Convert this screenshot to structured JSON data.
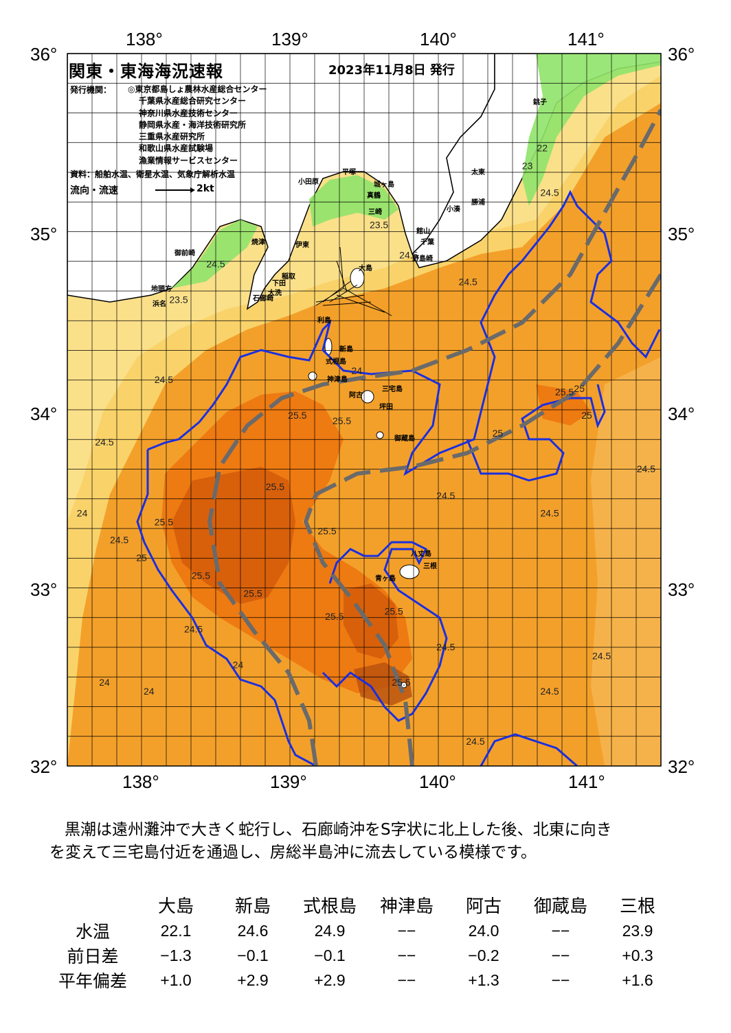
{
  "map": {
    "title": "関東・東海海況速報",
    "issued": "2023年11月8日 発行",
    "institutions_label": "発行機関：",
    "institutions": [
      "◎東京都島しょ農林水産総合センター",
      "千葉県水産総合研究センター",
      "神奈川県水産技術センター",
      "静岡県水産・海洋技術研究所",
      "三重県水産研究所",
      "和歌山県水産試験場",
      "漁業情報サービスセンター"
    ],
    "source": "資料：船舶水温、衛星水温、気象庁解析水温",
    "flow_label": "流向・流速",
    "flow_scale": "2kt",
    "lon_labels": [
      "138°",
      "139°",
      "140°",
      "141°"
    ],
    "lat_labels": [
      "36°",
      "35°",
      "34°",
      "33°",
      "32°"
    ],
    "colors": {
      "sea_base": "#f3a02b",
      "warm": "#ee7a12",
      "hot": "#d8600b",
      "cool": "#f9d36a",
      "land": "#ffffff",
      "kuroshio_path": "#6a6a6a",
      "contour_25": "#1a2fe0"
    },
    "places": {
      "oshima": "大島",
      "toshima": "利島",
      "niijima": "新島",
      "shikinejima": "式根島",
      "kozushima": "神津島",
      "miyakejima": "三宅島",
      "ako": "阿古",
      "tsubota": "坪田",
      "mikurajima": "御蔵島",
      "hachijojima": "八丈島",
      "mine": "三根",
      "aogashima": "青ヶ島",
      "choshi": "銚子",
      "taito": "太東",
      "katsuura": "勝浦",
      "kominato": "小湊",
      "tateyama": "館山",
      "nojimazaki": "野島崎",
      "odawara": "小田原",
      "manazuru": "真鶴",
      "hiratsuka": "平塚",
      "ito": "伊東",
      "inatori": "稲取",
      "shimoda": "下田",
      "omaezaki": "御前崎",
      "iroezaki": "石廊崎",
      "chiba": "千葉",
      "daito": "大洗",
      "misaki": "三崎",
      "jogashima": "城ヶ島",
      "yaizu": "焼津",
      "hamana": "浜名",
      "chikyumon": "地頭方"
    },
    "temp_labels": [
      {
        "t": "24.5",
        "lon": 138.5,
        "lat": 34.8
      },
      {
        "t": "24.5",
        "lon": 137.75,
        "lat": 33.8
      },
      {
        "t": "24",
        "lon": 137.6,
        "lat": 33.4
      },
      {
        "t": "25.5",
        "lon": 138.15,
        "lat": 33.35
      },
      {
        "t": "24.5",
        "lon": 137.85,
        "lat": 33.25
      },
      {
        "t": "25.5",
        "lon": 138.4,
        "lat": 33.05
      },
      {
        "t": "25.5",
        "lon": 138.75,
        "lat": 32.95
      },
      {
        "t": "24.5",
        "lon": 138.35,
        "lat": 32.75
      },
      {
        "t": "25.5",
        "lon": 138.9,
        "lat": 33.55
      },
      {
        "t": "25.5",
        "lon": 139.35,
        "lat": 33.92
      },
      {
        "t": "25.5",
        "lon": 139.05,
        "lat": 33.95
      },
      {
        "t": "24.5",
        "lon": 138.15,
        "lat": 34.15
      },
      {
        "t": "25.5",
        "lon": 139.25,
        "lat": 33.3
      },
      {
        "t": "25.5",
        "lon": 139.3,
        "lat": 32.82
      },
      {
        "t": "25.5",
        "lon": 139.7,
        "lat": 32.85
      },
      {
        "t": "24.5",
        "lon": 140.05,
        "lat": 32.65
      },
      {
        "t": "25.5",
        "lon": 139.75,
        "lat": 32.45
      },
      {
        "t": "24.5",
        "lon": 140.05,
        "lat": 33.5
      },
      {
        "t": "24.5",
        "lon": 140.75,
        "lat": 33.4
      },
      {
        "t": "25.5",
        "lon": 140.85,
        "lat": 34.08
      },
      {
        "t": "25",
        "lon": 141.0,
        "lat": 33.95
      },
      {
        "t": "24.5",
        "lon": 140.2,
        "lat": 34.7
      },
      {
        "t": "24.5",
        "lon": 140.75,
        "lat": 32.4
      },
      {
        "t": "24.5",
        "lon": 141.1,
        "lat": 32.6
      },
      {
        "t": "24.5",
        "lon": 140.25,
        "lat": 32.12
      },
      {
        "t": "24.5",
        "lon": 141.4,
        "lat": 33.65
      },
      {
        "t": "23.5",
        "lon": 138.25,
        "lat": 34.6
      },
      {
        "t": "23.5",
        "lon": 139.6,
        "lat": 35.02
      },
      {
        "t": "24.5",
        "lon": 139.8,
        "lat": 34.85
      },
      {
        "t": "22",
        "lon": 140.7,
        "lat": 35.45
      },
      {
        "t": "23",
        "lon": 140.6,
        "lat": 35.35
      },
      {
        "t": "24.5",
        "lon": 140.75,
        "lat": 35.2
      },
      {
        "t": "24",
        "lon": 139.45,
        "lat": 34.2
      },
      {
        "t": "25",
        "lon": 140.95,
        "lat": 34.1
      },
      {
        "t": "25",
        "lon": 140.4,
        "lat": 33.85
      },
      {
        "t": "25",
        "lon": 138.0,
        "lat": 33.15
      },
      {
        "t": "24",
        "lon": 138.05,
        "lat": 32.4
      },
      {
        "t": "24",
        "lon": 137.75,
        "lat": 32.45
      },
      {
        "t": "24",
        "lon": 138.65,
        "lat": 32.55
      }
    ]
  },
  "comment": {
    "line1": "黒潮は遠州灘沖で大きく蛇行し、石廊崎沖をS字状に北上した後、北東に向き",
    "line2": "を変えて三宅島付近を通過し、房総半島沖に流去している模様です。"
  },
  "table": {
    "headers": [
      "",
      "大島",
      "新島",
      "式根島",
      "神津島",
      "阿古",
      "御蔵島",
      "三根"
    ],
    "rows": [
      {
        "label": "水温",
        "values": [
          "22.1",
          "24.6",
          "24.9",
          "−−",
          "24.0",
          "−−",
          "23.9"
        ]
      },
      {
        "label": "前日差",
        "values": [
          "−1.3",
          "−0.1",
          "−0.1",
          "−−",
          "−0.2",
          "−−",
          "+0.3"
        ]
      },
      {
        "label": "平年偏差",
        "values": [
          "+1.0",
          "+2.9",
          "+2.9",
          "−−",
          "+1.3",
          "−−",
          "+1.6"
        ]
      }
    ]
  }
}
